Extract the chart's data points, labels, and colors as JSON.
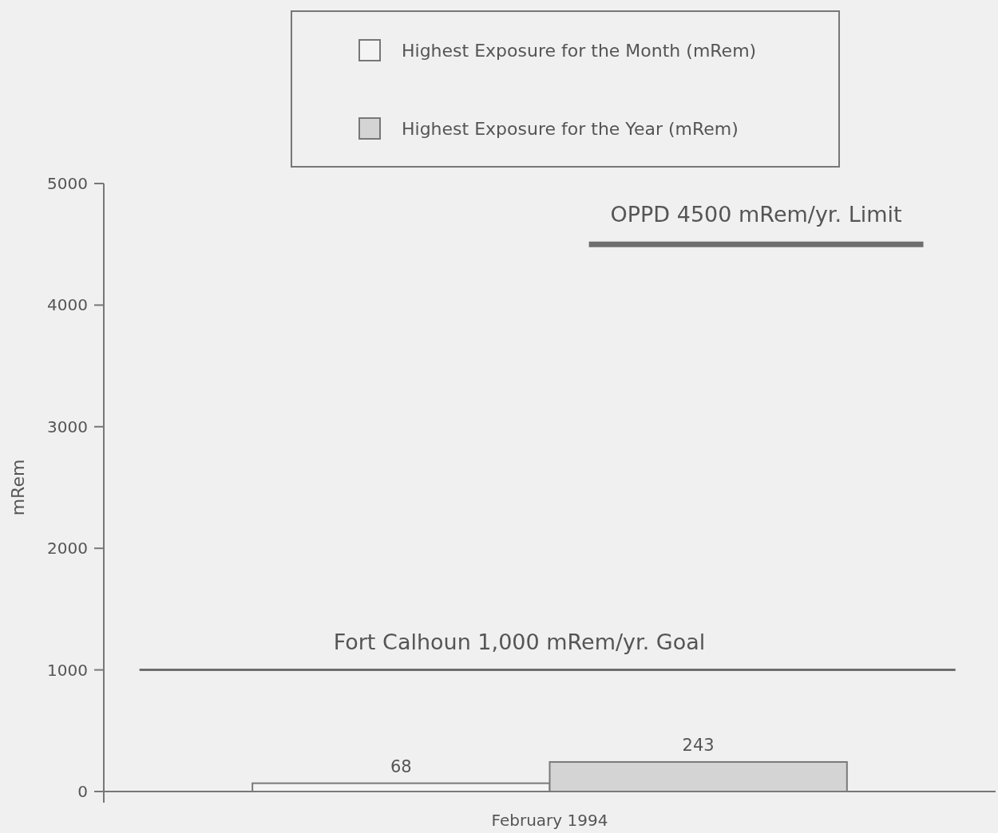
{
  "chart_data": {
    "type": "bar",
    "categories": [
      "February 1994"
    ],
    "series": [
      {
        "name": "Highest Exposure for the Month (mRem)",
        "color": "#f4f4f4",
        "values": [
          68
        ]
      },
      {
        "name": "Highest Exposure for the Year (mRem)",
        "color": "#d4d4d4",
        "values": [
          243
        ]
      }
    ],
    "ylabel": "mRem",
    "ylim": [
      0,
      5000
    ],
    "yticks": [
      0,
      1000,
      2000,
      3000,
      4000,
      5000
    ],
    "ref_lines": [
      {
        "axis": "y",
        "value": 1000,
        "label": "Fort Calhoun 1,000 mRem/yr. Goal",
        "color": "#6e6e6e"
      },
      {
        "axis": "y",
        "value": 4500,
        "label": "OPPD 4500 mRem/yr. Limit",
        "color": "#6e6e6e"
      }
    ],
    "data_labels": true,
    "legend": "top"
  }
}
